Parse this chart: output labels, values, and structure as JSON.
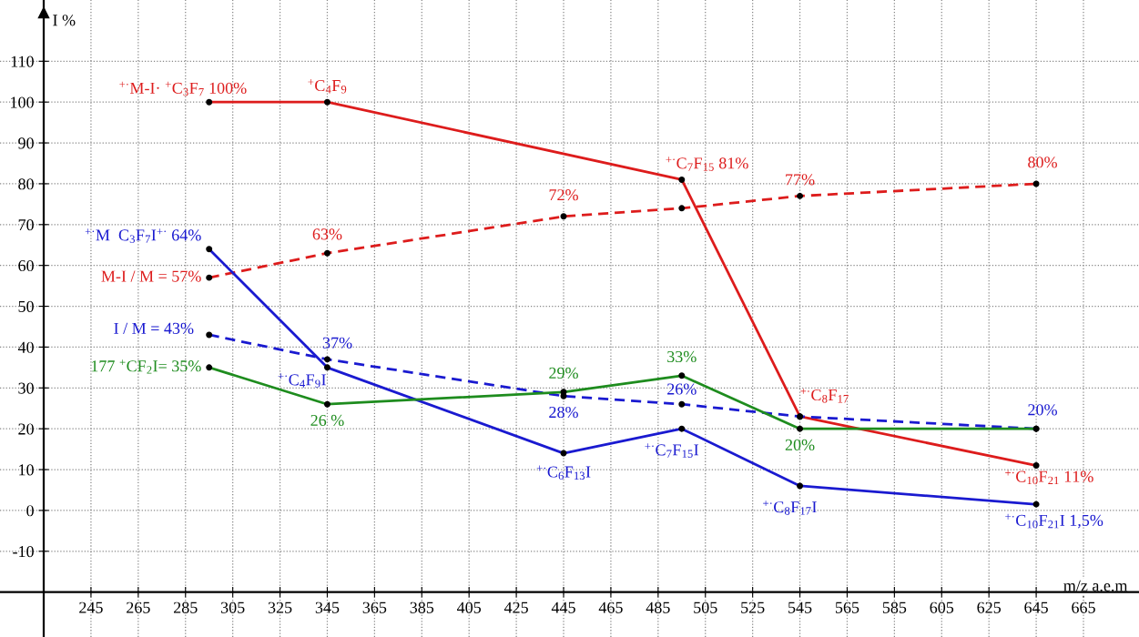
{
  "chart_data": {
    "type": "line",
    "xlabel": "m/z a.e.m",
    "ylabel": "I %",
    "xlim": [
      206.5,
      688.5
    ],
    "ylim": [
      -31,
      125
    ],
    "xticks": [
      245,
      265,
      285,
      305,
      325,
      345,
      365,
      385,
      405,
      425,
      445,
      465,
      485,
      505,
      525,
      545,
      565,
      585,
      605,
      625,
      645,
      665
    ],
    "yticks": [
      -10,
      0,
      10,
      20,
      30,
      40,
      50,
      60,
      70,
      80,
      90,
      100,
      110
    ],
    "grid": true,
    "marker": "circle",
    "series": [
      {
        "color": "#dd1c1c",
        "line_style": "solid",
        "x": [
          295,
          345,
          495,
          545,
          645
        ],
        "values": [
          100,
          100,
          81,
          23,
          11
        ],
        "value_labels": [
          "$^{+·}$M-I· $^{+}$C$_{3}$F$_{7}$ 100%",
          "$^{+}$C$_{4}$F$_{9}$",
          "$^{+·}$C$_{7}$F$_{15}$ 81%",
          "$^{+·}$C$_{8}$F$_{17}$",
          "$^{+·}$C$_{10}$F$_{21}$ 11%"
        ]
      },
      {
        "color": "#dd1c1c",
        "line_style": "dashed",
        "x": [
          295,
          345,
          445,
          495,
          545,
          645
        ],
        "values": [
          57,
          63,
          72,
          74,
          77,
          80
        ],
        "value_labels": [
          "M-I / M = 57%",
          "63%",
          "72%",
          null,
          "77%",
          "80%"
        ]
      },
      {
        "color": "#1a1ad0",
        "line_style": "solid",
        "x": [
          295,
          345,
          445,
          495,
          545,
          645
        ],
        "values": [
          64,
          35,
          14,
          20,
          6,
          1.5
        ],
        "value_labels": [
          "$^{+·}$M  C$_{3}$F$_{7}$I$^{+·}$ 64%",
          "$^{+·}$C$_{4}$F$_{9}$I",
          "$^{+·}$C$_{6}$F$_{13}$I",
          "$^{+·}$C$_{7}$F$_{15}$I",
          "$^{+·}$C$_{8}$F$_{17}$I",
          "$^{+·}$C$_{10}$F$_{21}$I 1,5%"
        ]
      },
      {
        "color": "#1a1ad0",
        "line_style": "dashed",
        "x": [
          295,
          345,
          445,
          495,
          545,
          645
        ],
        "values": [
          43,
          37,
          28,
          26,
          23,
          20
        ],
        "value_labels": [
          "I / M = 43%",
          "37%",
          "28%",
          "26%",
          null,
          "20%"
        ]
      },
      {
        "color": "#1e8c1e",
        "line_style": "solid",
        "x": [
          295,
          345,
          445,
          495,
          545,
          645
        ],
        "values": [
          35,
          26,
          29,
          33,
          20,
          20
        ],
        "value_labels": [
          "177 $^{+}$CF$_{2}$I= 35%",
          "26 %",
          "29%",
          "33%",
          "20%",
          null
        ]
      }
    ]
  }
}
